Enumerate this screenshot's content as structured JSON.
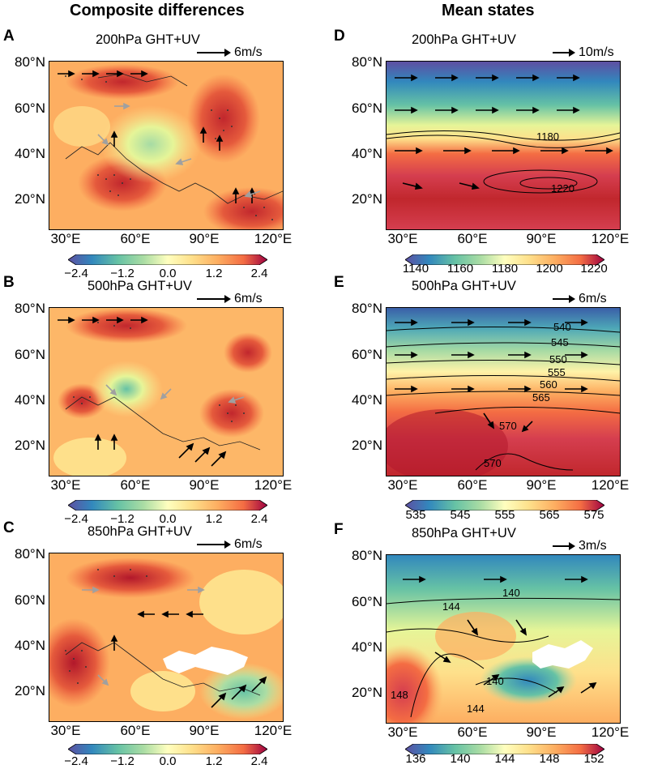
{
  "headers": {
    "left": "Composite differences",
    "right": "Mean states"
  },
  "panels": {
    "A": {
      "label": "A",
      "title": "200hPa GHT+UV",
      "ref_vector": "6m/s",
      "colorbar_ticks": [
        "−2.4",
        "−1.2",
        "0.0",
        "1.2",
        "2.4"
      ]
    },
    "B": {
      "label": "B",
      "title": "500hPa GHT+UV",
      "ref_vector": "6m/s",
      "colorbar_ticks": [
        "−2.4",
        "−1.2",
        "0.0",
        "1.2",
        "2.4"
      ]
    },
    "C": {
      "label": "C",
      "title": "850hPa GHT+UV",
      "ref_vector": "6m/s",
      "colorbar_ticks": [
        "−2.4",
        "−1.2",
        "0.0",
        "1.2",
        "2.4"
      ]
    },
    "D": {
      "label": "D",
      "title": "200hPa GHT+UV",
      "ref_vector": "10m/s",
      "colorbar_ticks": [
        "1140",
        "1160",
        "1180",
        "1200",
        "1220"
      ],
      "contour_labels": [
        "1180",
        "1220"
      ]
    },
    "E": {
      "label": "E",
      "title": "500hPa GHT+UV",
      "ref_vector": "6m/s",
      "colorbar_ticks": [
        "535",
        "545",
        "555",
        "565",
        "575"
      ],
      "contour_labels": [
        "540",
        "545",
        "550",
        "555",
        "560",
        "565",
        "570",
        "570"
      ]
    },
    "F": {
      "label": "F",
      "title": "850hPa GHT+UV",
      "ref_vector": "3m/s",
      "colorbar_ticks": [
        "136",
        "140",
        "144",
        "148",
        "152"
      ],
      "contour_labels": [
        "140",
        "144",
        "140",
        "144",
        "148"
      ]
    }
  },
  "axes": {
    "lat_ticks": [
      "80°N",
      "60°N",
      "40°N",
      "20°N"
    ],
    "lon_ticks": [
      "30°E",
      "60°E",
      "90°E",
      "120°E"
    ]
  },
  "colors": {
    "colormap": "Spectral_r",
    "shaded_vectors": "#9a9a9a",
    "masked": "#ffffff"
  }
}
